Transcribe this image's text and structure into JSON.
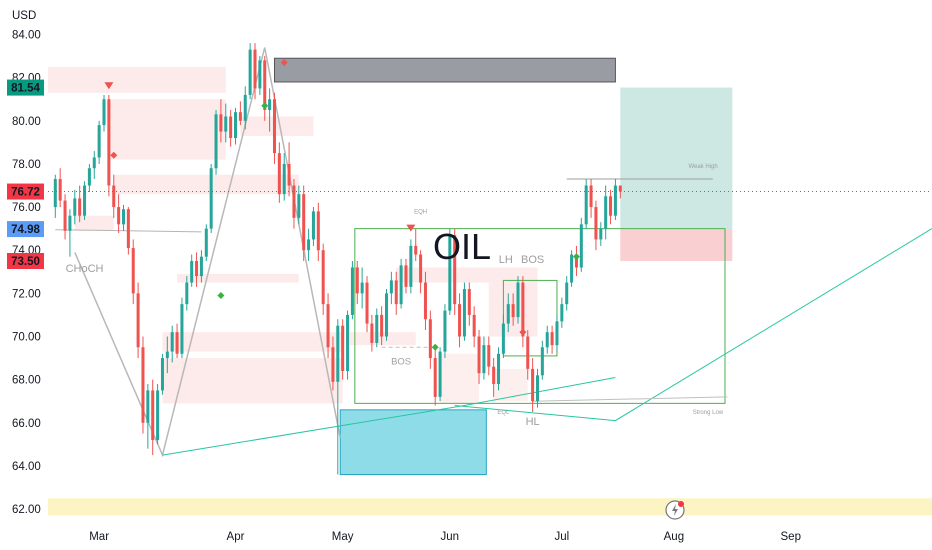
{
  "chart_data": {
    "type": "candlestick",
    "title": "OIL",
    "currency": "USD",
    "ylim": [
      61.4,
      85.6
    ],
    "yticks": [
      62,
      64,
      66,
      68,
      70,
      72,
      74,
      76,
      78,
      80,
      82,
      84
    ],
    "ytick_labels": [
      "62.00",
      "64.00",
      "66.00",
      "68.00",
      "70.00",
      "72.00",
      "74.00",
      "76.00",
      "78.00",
      "80.00",
      "82.00",
      "84.00"
    ],
    "xlim": [
      -1.5,
      180
    ],
    "x_ticks": [
      {
        "label": "Mar",
        "i": 9
      },
      {
        "label": "Apr",
        "i": 37
      },
      {
        "label": "May",
        "i": 59
      },
      {
        "label": "Jun",
        "i": 81
      },
      {
        "label": "Jul",
        "i": 104
      },
      {
        "label": "Aug",
        "i": 127
      },
      {
        "label": "Sep",
        "i": 151
      }
    ],
    "price_labels": [
      {
        "text": "81.54",
        "value": 81.54,
        "bg": "#089981"
      },
      {
        "text": "76.72",
        "value": 76.72,
        "bg": "#f23645"
      },
      {
        "text": "74.98",
        "value": 74.98,
        "bg": "#5b9cf6"
      },
      {
        "text": "73.50",
        "value": 73.5,
        "bg": "#f23645"
      }
    ],
    "candles": [
      {
        "o": 76.0,
        "h": 77.5,
        "l": 75.5,
        "c": 77.3
      },
      {
        "o": 77.3,
        "h": 77.8,
        "l": 76.0,
        "c": 76.3
      },
      {
        "o": 76.3,
        "h": 76.6,
        "l": 74.5,
        "c": 74.9
      },
      {
        "o": 74.9,
        "h": 75.9,
        "l": 73.7,
        "c": 75.6
      },
      {
        "o": 75.6,
        "h": 76.8,
        "l": 75.2,
        "c": 76.4
      },
      {
        "o": 76.4,
        "h": 77.0,
        "l": 75.3,
        "c": 75.6
      },
      {
        "o": 75.6,
        "h": 77.2,
        "l": 75.4,
        "c": 77.0
      },
      {
        "o": 77.0,
        "h": 78.0,
        "l": 76.7,
        "c": 77.8
      },
      {
        "o": 77.8,
        "h": 78.6,
        "l": 77.3,
        "c": 78.3
      },
      {
        "o": 78.3,
        "h": 80.0,
        "l": 78.0,
        "c": 79.8
      },
      {
        "o": 79.8,
        "h": 81.2,
        "l": 79.5,
        "c": 81.0
      },
      {
        "o": 81.0,
        "h": 81.2,
        "l": 76.5,
        "c": 77.0
      },
      {
        "o": 77.0,
        "h": 77.5,
        "l": 75.5,
        "c": 76.0
      },
      {
        "o": 76.0,
        "h": 76.6,
        "l": 74.8,
        "c": 75.2
      },
      {
        "o": 75.2,
        "h": 76.1,
        "l": 74.9,
        "c": 75.9
      },
      {
        "o": 75.9,
        "h": 76.0,
        "l": 73.8,
        "c": 74.1
      },
      {
        "o": 74.1,
        "h": 74.5,
        "l": 71.5,
        "c": 72.0
      },
      {
        "o": 72.0,
        "h": 72.5,
        "l": 69.0,
        "c": 69.5
      },
      {
        "o": 69.5,
        "h": 70.0,
        "l": 65.5,
        "c": 66.0
      },
      {
        "o": 66.0,
        "h": 67.8,
        "l": 64.8,
        "c": 67.5
      },
      {
        "o": 67.5,
        "h": 68.0,
        "l": 64.5,
        "c": 65.2
      },
      {
        "o": 65.2,
        "h": 67.8,
        "l": 65.0,
        "c": 67.5
      },
      {
        "o": 67.5,
        "h": 69.2,
        "l": 67.3,
        "c": 69.0
      },
      {
        "o": 69.0,
        "h": 70.0,
        "l": 68.3,
        "c": 69.3
      },
      {
        "o": 69.3,
        "h": 70.5,
        "l": 68.8,
        "c": 70.2
      },
      {
        "o": 70.2,
        "h": 70.6,
        "l": 69.0,
        "c": 69.2
      },
      {
        "o": 69.2,
        "h": 71.8,
        "l": 69.0,
        "c": 71.5
      },
      {
        "o": 71.5,
        "h": 72.8,
        "l": 71.2,
        "c": 72.5
      },
      {
        "o": 72.5,
        "h": 73.8,
        "l": 72.3,
        "c": 73.5
      },
      {
        "o": 73.5,
        "h": 73.9,
        "l": 72.3,
        "c": 72.8
      },
      {
        "o": 72.8,
        "h": 74.0,
        "l": 72.5,
        "c": 73.7
      },
      {
        "o": 73.7,
        "h": 75.2,
        "l": 73.5,
        "c": 75.0
      },
      {
        "o": 75.0,
        "h": 78.0,
        "l": 74.8,
        "c": 77.8
      },
      {
        "o": 77.8,
        "h": 80.5,
        "l": 77.5,
        "c": 80.3
      },
      {
        "o": 80.3,
        "h": 81.0,
        "l": 79.0,
        "c": 79.5
      },
      {
        "o": 79.5,
        "h": 80.8,
        "l": 79.0,
        "c": 80.2
      },
      {
        "o": 80.2,
        "h": 80.5,
        "l": 78.8,
        "c": 79.2
      },
      {
        "o": 79.2,
        "h": 80.6,
        "l": 78.9,
        "c": 80.4
      },
      {
        "o": 80.4,
        "h": 80.9,
        "l": 79.8,
        "c": 80.0
      },
      {
        "o": 80.0,
        "h": 81.6,
        "l": 79.6,
        "c": 81.2
      },
      {
        "o": 81.2,
        "h": 83.6,
        "l": 81.0,
        "c": 83.3
      },
      {
        "o": 83.3,
        "h": 83.6,
        "l": 81.0,
        "c": 81.5
      },
      {
        "o": 81.5,
        "h": 83.0,
        "l": 81.2,
        "c": 82.8
      },
      {
        "o": 82.8,
        "h": 83.0,
        "l": 80.0,
        "c": 80.5
      },
      {
        "o": 80.5,
        "h": 81.5,
        "l": 79.5,
        "c": 81.0
      },
      {
        "o": 81.0,
        "h": 81.3,
        "l": 78.0,
        "c": 78.5
      },
      {
        "o": 78.5,
        "h": 79.0,
        "l": 76.2,
        "c": 76.6
      },
      {
        "o": 76.6,
        "h": 78.5,
        "l": 76.3,
        "c": 78.0
      },
      {
        "o": 78.0,
        "h": 79.0,
        "l": 76.5,
        "c": 77.0
      },
      {
        "o": 77.0,
        "h": 77.3,
        "l": 75.0,
        "c": 75.5
      },
      {
        "o": 75.5,
        "h": 77.0,
        "l": 75.2,
        "c": 76.6
      },
      {
        "o": 76.6,
        "h": 77.0,
        "l": 73.5,
        "c": 74.0
      },
      {
        "o": 74.0,
        "h": 75.0,
        "l": 73.5,
        "c": 74.5
      },
      {
        "o": 74.5,
        "h": 76.0,
        "l": 74.2,
        "c": 75.8
      },
      {
        "o": 75.8,
        "h": 76.2,
        "l": 73.5,
        "c": 74.0
      },
      {
        "o": 74.0,
        "h": 74.3,
        "l": 71.0,
        "c": 71.5
      },
      {
        "o": 71.5,
        "h": 72.0,
        "l": 69.0,
        "c": 69.5
      },
      {
        "o": 69.5,
        "h": 70.0,
        "l": 67.5,
        "c": 67.9
      },
      {
        "o": 67.9,
        "h": 70.8,
        "l": 63.6,
        "c": 70.5
      },
      {
        "o": 70.5,
        "h": 70.8,
        "l": 68.0,
        "c": 68.4
      },
      {
        "o": 68.4,
        "h": 71.2,
        "l": 68.0,
        "c": 71.0
      },
      {
        "o": 71.0,
        "h": 73.5,
        "l": 70.8,
        "c": 73.2
      },
      {
        "o": 73.2,
        "h": 73.5,
        "l": 71.5,
        "c": 72.0
      },
      {
        "o": 72.0,
        "h": 73.2,
        "l": 71.3,
        "c": 72.5
      },
      {
        "o": 72.5,
        "h": 72.8,
        "l": 70.2,
        "c": 70.6
      },
      {
        "o": 70.6,
        "h": 71.0,
        "l": 69.3,
        "c": 69.7
      },
      {
        "o": 69.7,
        "h": 71.3,
        "l": 69.5,
        "c": 71.0
      },
      {
        "o": 71.0,
        "h": 71.4,
        "l": 69.6,
        "c": 70.0
      },
      {
        "o": 70.0,
        "h": 72.2,
        "l": 69.8,
        "c": 72.0
      },
      {
        "o": 72.0,
        "h": 73.0,
        "l": 71.5,
        "c": 72.6
      },
      {
        "o": 72.6,
        "h": 73.0,
        "l": 71.0,
        "c": 71.5
      },
      {
        "o": 71.5,
        "h": 73.6,
        "l": 71.3,
        "c": 73.3
      },
      {
        "o": 73.3,
        "h": 73.6,
        "l": 72.0,
        "c": 72.3
      },
      {
        "o": 72.3,
        "h": 74.5,
        "l": 72.0,
        "c": 74.2
      },
      {
        "o": 74.2,
        "h": 75.0,
        "l": 73.5,
        "c": 73.8
      },
      {
        "o": 73.8,
        "h": 74.0,
        "l": 72.0,
        "c": 72.5
      },
      {
        "o": 72.5,
        "h": 73.0,
        "l": 70.3,
        "c": 70.8
      },
      {
        "o": 70.8,
        "h": 71.2,
        "l": 68.5,
        "c": 69.0
      },
      {
        "o": 69.0,
        "h": 69.5,
        "l": 66.8,
        "c": 67.2
      },
      {
        "o": 67.2,
        "h": 69.5,
        "l": 67.0,
        "c": 69.3
      },
      {
        "o": 69.3,
        "h": 71.5,
        "l": 69.0,
        "c": 71.2
      },
      {
        "o": 71.2,
        "h": 75.0,
        "l": 71.0,
        "c": 74.7
      },
      {
        "o": 74.7,
        "h": 75.0,
        "l": 71.0,
        "c": 71.5
      },
      {
        "o": 71.5,
        "h": 72.0,
        "l": 69.5,
        "c": 70.0
      },
      {
        "o": 70.0,
        "h": 72.5,
        "l": 69.8,
        "c": 72.2
      },
      {
        "o": 72.2,
        "h": 72.5,
        "l": 70.5,
        "c": 71.0
      },
      {
        "o": 71.0,
        "h": 71.4,
        "l": 69.5,
        "c": 70.0
      },
      {
        "o": 70.0,
        "h": 70.3,
        "l": 67.8,
        "c": 68.3
      },
      {
        "o": 68.3,
        "h": 70.0,
        "l": 68.0,
        "c": 69.6
      },
      {
        "o": 69.6,
        "h": 70.0,
        "l": 68.2,
        "c": 68.6
      },
      {
        "o": 68.6,
        "h": 69.0,
        "l": 67.2,
        "c": 67.8
      },
      {
        "o": 67.8,
        "h": 69.5,
        "l": 67.5,
        "c": 69.2
      },
      {
        "o": 69.2,
        "h": 71.0,
        "l": 69.0,
        "c": 70.6
      },
      {
        "o": 70.6,
        "h": 72.0,
        "l": 70.2,
        "c": 71.5
      },
      {
        "o": 71.5,
        "h": 72.0,
        "l": 70.5,
        "c": 70.9
      },
      {
        "o": 70.9,
        "h": 72.8,
        "l": 70.6,
        "c": 72.5
      },
      {
        "o": 72.5,
        "h": 72.8,
        "l": 69.5,
        "c": 70.0
      },
      {
        "o": 70.0,
        "h": 70.3,
        "l": 68.0,
        "c": 68.5
      },
      {
        "o": 68.5,
        "h": 69.0,
        "l": 66.5,
        "c": 67.0
      },
      {
        "o": 67.0,
        "h": 68.5,
        "l": 66.7,
        "c": 68.2
      },
      {
        "o": 68.2,
        "h": 69.8,
        "l": 68.0,
        "c": 69.5
      },
      {
        "o": 69.5,
        "h": 70.5,
        "l": 69.2,
        "c": 70.2
      },
      {
        "o": 70.2,
        "h": 70.5,
        "l": 69.2,
        "c": 69.6
      },
      {
        "o": 69.6,
        "h": 71.0,
        "l": 69.3,
        "c": 70.7
      },
      {
        "o": 70.7,
        "h": 71.8,
        "l": 70.4,
        "c": 71.5
      },
      {
        "o": 71.5,
        "h": 72.8,
        "l": 71.2,
        "c": 72.5
      },
      {
        "o": 72.5,
        "h": 74.0,
        "l": 72.3,
        "c": 73.8
      },
      {
        "o": 73.8,
        "h": 74.2,
        "l": 72.8,
        "c": 73.2
      },
      {
        "o": 73.2,
        "h": 75.5,
        "l": 73.0,
        "c": 75.2
      },
      {
        "o": 75.2,
        "h": 77.3,
        "l": 75.0,
        "c": 77.0
      },
      {
        "o": 77.0,
        "h": 77.3,
        "l": 75.5,
        "c": 76.0
      },
      {
        "o": 76.0,
        "h": 76.3,
        "l": 74.0,
        "c": 74.5
      },
      {
        "o": 74.5,
        "h": 75.3,
        "l": 74.2,
        "c": 75.0
      },
      {
        "o": 75.0,
        "h": 77.0,
        "l": 74.5,
        "c": 76.5
      },
      {
        "o": 76.5,
        "h": 76.8,
        "l": 75.2,
        "c": 75.6
      },
      {
        "o": 75.6,
        "h": 77.3,
        "l": 75.4,
        "c": 77.0
      },
      {
        "o": 77.0,
        "h": 77.0,
        "l": 76.4,
        "c": 76.72
      }
    ],
    "zones": [
      {
        "x0": -1.5,
        "x1": 35,
        "y0": 81.3,
        "y1": 82.5,
        "fill": "#fde8e8",
        "opacity": 0.9
      },
      {
        "x0": 11,
        "x1": 35,
        "y0": 78.2,
        "y1": 81.0,
        "fill": "#fde8e8",
        "opacity": 0.9
      },
      {
        "x0": 12,
        "x1": 50,
        "y0": 76.6,
        "y1": 77.5,
        "fill": "#fde8e8",
        "opacity": 0.9
      },
      {
        "x0": 4,
        "x1": 12,
        "y0": 74.9,
        "y1": 75.6,
        "fill": "#fde8e8",
        "opacity": 0.9
      },
      {
        "x0": 38,
        "x1": 53,
        "y0": 79.3,
        "y1": 80.2,
        "fill": "#fde8e8",
        "opacity": 0.9
      },
      {
        "x0": 22,
        "x1": 59,
        "y0": 69.3,
        "y1": 70.2,
        "fill": "#fde8e8",
        "opacity": 0.9
      },
      {
        "x0": 22,
        "x1": 59,
        "y0": 66.9,
        "y1": 69.0,
        "fill": "#fde8e8",
        "opacity": 0.9
      },
      {
        "x0": 25,
        "x1": 50,
        "y0": 72.5,
        "y1": 72.9,
        "fill": "#fde8e8",
        "opacity": 0.9
      },
      {
        "x0": 60,
        "x1": 74,
        "y0": 69.6,
        "y1": 70.2,
        "fill": "#fde8e8",
        "opacity": 0.9
      },
      {
        "x0": 70,
        "x1": 99,
        "y0": 72.5,
        "y1": 73.2,
        "fill": "#fde8e8",
        "opacity": 0.9
      },
      {
        "x0": 89,
        "x1": 99,
        "y0": 70.0,
        "y1": 72.5,
        "fill": "#fde8e8",
        "opacity": 0.9
      },
      {
        "x0": 79,
        "x1": 87,
        "y0": 66.9,
        "y1": 69.2,
        "fill": "#fde8e8",
        "opacity": 0.7
      },
      {
        "x0": 90,
        "x1": 97,
        "y0": 67.0,
        "y1": 68.5,
        "fill": "#fde8e8",
        "opacity": 0.7
      },
      {
        "x0": 116,
        "x1": 139,
        "y0": 73.5,
        "y1": 74.98,
        "fill": "#f9cfd2",
        "opacity": 1
      },
      {
        "x0": 116,
        "x1": 139,
        "y0": 74.98,
        "y1": 81.54,
        "fill": "#cde8e3",
        "opacity": 1
      },
      {
        "x0": 45,
        "x1": 115,
        "y0": 81.8,
        "y1": 82.9,
        "fill": "#9a9ca4",
        "opacity": 1
      },
      {
        "x0": 58.5,
        "x1": 88.5,
        "y0": 63.6,
        "y1": 66.6,
        "fill": "#8fdce9",
        "opacity": 1
      },
      {
        "x0": -1.5,
        "x1": 180,
        "y0": 61.7,
        "y1": 62.5,
        "fill": "#fdf4c4",
        "opacity": 1
      }
    ],
    "outline_boxes": [
      {
        "x0": 61.5,
        "x1": 137.5,
        "y0": 66.9,
        "y1": 75.0,
        "stroke": "#4caf50"
      },
      {
        "x0": 92,
        "x1": 103,
        "y0": 69.1,
        "y1": 72.6,
        "stroke": "#4caf50"
      },
      {
        "x0": 45,
        "x1": 115,
        "y0": 81.8,
        "y1": 82.9,
        "stroke": "#555555"
      },
      {
        "x0": 58.5,
        "x1": 88.5,
        "y0": 63.6,
        "y1": 66.6,
        "stroke": "#26a6c1"
      }
    ],
    "lines": [
      {
        "points": [
          [
            4,
            73.9
          ],
          [
            22,
            64.5
          ],
          [
            43,
            83.4
          ],
          [
            58.5,
            65.3
          ]
        ],
        "stroke": "#b8b8b8",
        "width": 1.5
      },
      {
        "points": [
          [
            22,
            64.5
          ],
          [
            84,
            66.8
          ],
          [
            115,
            68.1
          ]
        ],
        "stroke": "#26c6a0",
        "width": 1
      },
      {
        "points": [
          [
            82,
            66.8
          ],
          [
            115,
            66.1
          ],
          [
            180,
            75.0
          ]
        ],
        "stroke": "#26c6a0",
        "width": 1
      },
      {
        "points": [
          [
            0,
            74.95
          ],
          [
            30,
            74.85
          ]
        ],
        "stroke": "#b5b5b5",
        "width": 1
      },
      {
        "points": [
          [
            105,
            77.3
          ],
          [
            135,
            77.3
          ]
        ],
        "stroke": "#9e9e9e",
        "width": 1
      },
      {
        "points": [
          [
            67,
            69.5
          ],
          [
            77,
            69.5
          ]
        ],
        "stroke": "#bfbfbf",
        "width": 1,
        "dash": "4,3"
      },
      {
        "points": [
          [
            98,
            67.0
          ],
          [
            138,
            67.2
          ]
        ],
        "stroke": "#bfbfbf",
        "width": 1
      }
    ],
    "price_line": {
      "value": 76.72,
      "x0": -1.5,
      "x1": 180,
      "stroke": "#f23645"
    },
    "diamonds_green": [
      [
        34,
        71.9
      ],
      [
        43,
        80.7
      ],
      [
        78,
        69.5
      ],
      [
        107,
        73.7
      ]
    ],
    "diamonds_red": [
      [
        12,
        78.4
      ],
      [
        47,
        82.7
      ],
      [
        96,
        70.2
      ]
    ],
    "triangles_red": [
      [
        11,
        81.6
      ],
      [
        73,
        75.0
      ]
    ],
    "annotations": [
      {
        "text": "CHoCH",
        "i": 6,
        "y": 73.0,
        "size": 11,
        "color": "#9e9e9e",
        "weight": "normal"
      },
      {
        "text": "BOS",
        "i": 71,
        "y": 68.7,
        "size": 9.5,
        "color": "#a0a0a0",
        "weight": "normal"
      },
      {
        "text": "OIL",
        "i": 83.5,
        "y": 73.6,
        "size": 36,
        "color": "#131722",
        "weight": "normal"
      },
      {
        "text": "LH",
        "i": 92.5,
        "y": 73.4,
        "size": 11,
        "color": "#9e9e9e",
        "weight": "normal"
      },
      {
        "text": "BOS",
        "i": 98,
        "y": 73.4,
        "size": 11,
        "color": "#9e9e9e",
        "weight": "normal"
      },
      {
        "text": "EQH",
        "i": 75,
        "y": 75.7,
        "size": 6,
        "color": "#9e9e9e",
        "weight": "normal"
      },
      {
        "text": "EQL",
        "i": 92,
        "y": 66.4,
        "size": 6,
        "color": "#9e9e9e",
        "weight": "normal"
      },
      {
        "text": "HL",
        "i": 98,
        "y": 65.9,
        "size": 11,
        "color": "#9e9e9e",
        "weight": "normal"
      },
      {
        "text": "Weak High",
        "i": 133,
        "y": 77.8,
        "size": 6,
        "color": "#9e9e9e",
        "weight": "normal"
      },
      {
        "text": "Strong Low",
        "i": 134,
        "y": 66.4,
        "size": 6,
        "color": "#9e9e9e",
        "weight": "normal"
      }
    ],
    "up_color": "#26a69a",
    "down_color": "#ef5350",
    "grid": false,
    "legend": "none"
  }
}
